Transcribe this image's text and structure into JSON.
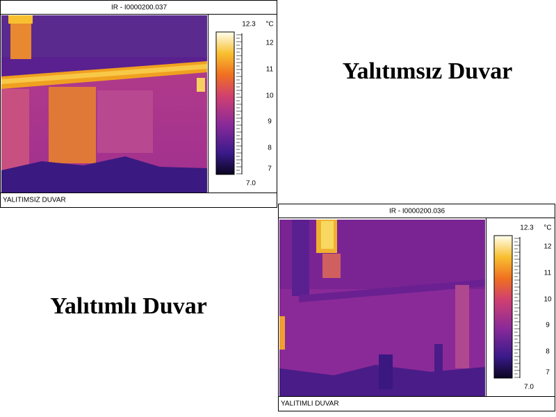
{
  "slide": {
    "titles": [
      "Yalıtımsız Duvar",
      "Yalıtımlı Duvar"
    ]
  },
  "panels": [
    {
      "header": "IR - I0000200.037",
      "footer": "YALITIMSIZ DUVAR",
      "scale_max": "12.3",
      "scale_min": "7.0",
      "unit": "°C",
      "scale_ticks": [
        "12",
        "11",
        "10",
        "9",
        "8",
        "7"
      ]
    },
    {
      "header": "IR - I0000200.036",
      "footer": "YALITIMLI DUVAR",
      "scale_max": "12.3",
      "scale_min": "7.0",
      "unit": "°C",
      "scale_ticks": [
        "12",
        "11",
        "10",
        "9",
        "8",
        "7"
      ]
    }
  ]
}
